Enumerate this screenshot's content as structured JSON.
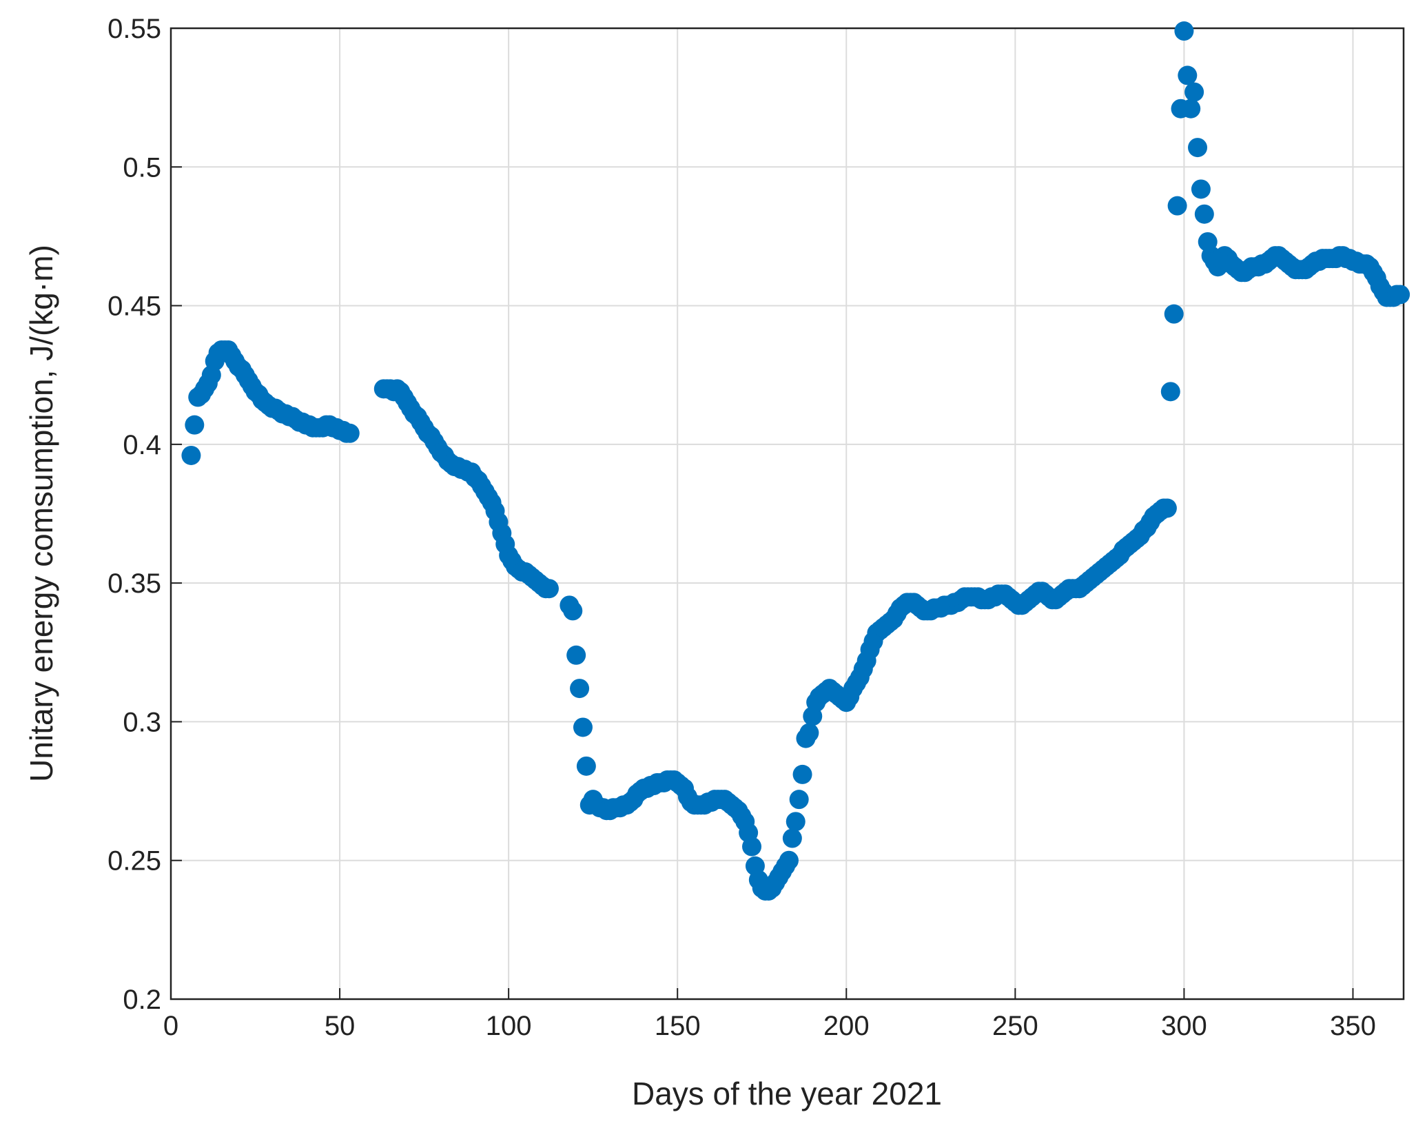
{
  "chart_data": {
    "type": "scatter",
    "xlabel": "Days of the year 2021",
    "ylabel": "Unitary energy comsumption, J/(kg·m)",
    "color": "#0072bd",
    "grid": true,
    "xlim": [
      0,
      365
    ],
    "ylim": [
      0.2,
      0.55
    ],
    "xticks": [
      0,
      50,
      100,
      150,
      200,
      250,
      300,
      350
    ],
    "yticks": [
      {
        "value": 0.2,
        "label": "0.2"
      },
      0.25,
      {
        "value": 0.3,
        "label": "0.3"
      },
      0.35,
      {
        "value": 0.4,
        "label": "0.4"
      },
      0.45,
      {
        "value": 0.5,
        "label": "0.5"
      },
      0.55
    ],
    "x": [
      6,
      7,
      8,
      9,
      10,
      11,
      12,
      13,
      14,
      15,
      16,
      17,
      18,
      19,
      20,
      21,
      22,
      23,
      24,
      25,
      26,
      27,
      28,
      29,
      30,
      31,
      32,
      33,
      34,
      35,
      36,
      37,
      38,
      39,
      40,
      41,
      42,
      43,
      44,
      45,
      46,
      47,
      48,
      49,
      50,
      51,
      52,
      53,
      63,
      64,
      65,
      66,
      67,
      68,
      69,
      70,
      71,
      72,
      73,
      74,
      75,
      76,
      77,
      78,
      79,
      80,
      81,
      82,
      83,
      84,
      85,
      86,
      87,
      88,
      89,
      90,
      91,
      92,
      93,
      94,
      95,
      96,
      97,
      98,
      99,
      100,
      101,
      102,
      103,
      104,
      105,
      106,
      107,
      108,
      109,
      110,
      111,
      112,
      118,
      119,
      120,
      121,
      122,
      123,
      124,
      125,
      126,
      127,
      128,
      129,
      130,
      131,
      132,
      133,
      134,
      135,
      136,
      137,
      138,
      139,
      140,
      141,
      142,
      143,
      144,
      145,
      146,
      147,
      148,
      149,
      150,
      151,
      152,
      153,
      154,
      155,
      156,
      157,
      158,
      159,
      160,
      161,
      162,
      163,
      164,
      165,
      166,
      167,
      168,
      169,
      170,
      171,
      172,
      173,
      174,
      175,
      176,
      177,
      178,
      179,
      180,
      181,
      182,
      183,
      184,
      185,
      186,
      187,
      188,
      189,
      190,
      191,
      192,
      193,
      194,
      195,
      196,
      197,
      198,
      199,
      200,
      201,
      202,
      203,
      204,
      205,
      206,
      207,
      208,
      209,
      210,
      211,
      212,
      213,
      214,
      215,
      216,
      217,
      218,
      219,
      220,
      221,
      222,
      223,
      224,
      225,
      226,
      227,
      228,
      229,
      230,
      231,
      232,
      233,
      234,
      235,
      236,
      237,
      238,
      239,
      240,
      241,
      242,
      243,
      244,
      245,
      246,
      247,
      248,
      249,
      250,
      251,
      252,
      253,
      254,
      255,
      256,
      257,
      258,
      259,
      260,
      261,
      262,
      263,
      264,
      265,
      266,
      267,
      268,
      269,
      270,
      271,
      272,
      273,
      274,
      275,
      276,
      277,
      278,
      279,
      280,
      281,
      282,
      283,
      284,
      285,
      286,
      287,
      288,
      289,
      290,
      291,
      292,
      293,
      294,
      295,
      296,
      297,
      298,
      299,
      300,
      301,
      302,
      303,
      304,
      305,
      306,
      307,
      308,
      309,
      310,
      311,
      312,
      313,
      314,
      315,
      316,
      317,
      318,
      319,
      320,
      321,
      322,
      323,
      324,
      325,
      326,
      327,
      328,
      329,
      330,
      331,
      332,
      333,
      334,
      335,
      336,
      337,
      338,
      339,
      340,
      341,
      342,
      343,
      344,
      345,
      346,
      347,
      348,
      349,
      350,
      351,
      352,
      353,
      354,
      355,
      356,
      357,
      358,
      359,
      360,
      361,
      362,
      363,
      364
    ],
    "values": [
      0.396,
      0.407,
      0.417,
      0.418,
      0.42,
      0.422,
      0.425,
      0.43,
      0.433,
      0.434,
      0.434,
      0.434,
      0.432,
      0.43,
      0.428,
      0.427,
      0.425,
      0.423,
      0.421,
      0.419,
      0.418,
      0.416,
      0.415,
      0.414,
      0.413,
      0.413,
      0.412,
      0.411,
      0.411,
      0.41,
      0.41,
      0.409,
      0.408,
      0.408,
      0.407,
      0.407,
      0.406,
      0.406,
      0.406,
      0.406,
      0.407,
      0.407,
      0.406,
      0.406,
      0.405,
      0.405,
      0.404,
      0.404,
      0.42,
      0.42,
      0.42,
      0.419,
      0.42,
      0.419,
      0.417,
      0.415,
      0.413,
      0.411,
      0.41,
      0.408,
      0.406,
      0.404,
      0.403,
      0.401,
      0.399,
      0.397,
      0.396,
      0.394,
      0.393,
      0.392,
      0.392,
      0.391,
      0.391,
      0.39,
      0.39,
      0.388,
      0.387,
      0.385,
      0.383,
      0.381,
      0.379,
      0.376,
      0.372,
      0.368,
      0.364,
      0.36,
      0.358,
      0.356,
      0.355,
      0.354,
      0.354,
      0.353,
      0.352,
      0.351,
      0.35,
      0.349,
      0.348,
      0.348,
      0.342,
      0.34,
      0.324,
      0.312,
      0.298,
      0.284,
      0.27,
      0.272,
      0.27,
      0.269,
      0.269,
      0.268,
      0.268,
      0.269,
      0.269,
      0.269,
      0.27,
      0.27,
      0.271,
      0.272,
      0.274,
      0.275,
      0.276,
      0.276,
      0.277,
      0.277,
      0.278,
      0.278,
      0.278,
      0.279,
      0.279,
      0.279,
      0.278,
      0.277,
      0.276,
      0.273,
      0.271,
      0.27,
      0.27,
      0.27,
      0.27,
      0.271,
      0.271,
      0.272,
      0.272,
      0.272,
      0.272,
      0.271,
      0.27,
      0.269,
      0.268,
      0.266,
      0.264,
      0.26,
      0.255,
      0.248,
      0.243,
      0.24,
      0.239,
      0.239,
      0.24,
      0.242,
      0.244,
      0.246,
      0.248,
      0.25,
      0.258,
      0.264,
      0.272,
      0.281,
      0.294,
      0.296,
      0.302,
      0.307,
      0.309,
      0.31,
      0.311,
      0.312,
      0.311,
      0.31,
      0.309,
      0.308,
      0.307,
      0.309,
      0.312,
      0.314,
      0.316,
      0.319,
      0.322,
      0.326,
      0.329,
      0.332,
      0.333,
      0.334,
      0.335,
      0.336,
      0.337,
      0.339,
      0.341,
      0.342,
      0.343,
      0.343,
      0.343,
      0.342,
      0.341,
      0.34,
      0.34,
      0.34,
      0.341,
      0.341,
      0.341,
      0.342,
      0.342,
      0.342,
      0.343,
      0.343,
      0.344,
      0.345,
      0.345,
      0.345,
      0.345,
      0.345,
      0.344,
      0.344,
      0.344,
      0.345,
      0.345,
      0.346,
      0.346,
      0.346,
      0.345,
      0.344,
      0.343,
      0.342,
      0.342,
      0.343,
      0.344,
      0.345,
      0.346,
      0.347,
      0.347,
      0.346,
      0.345,
      0.344,
      0.344,
      0.345,
      0.346,
      0.347,
      0.348,
      0.348,
      0.348,
      0.348,
      0.349,
      0.35,
      0.351,
      0.352,
      0.353,
      0.354,
      0.355,
      0.356,
      0.357,
      0.358,
      0.359,
      0.36,
      0.362,
      0.363,
      0.364,
      0.365,
      0.366,
      0.367,
      0.369,
      0.37,
      0.372,
      0.374,
      0.375,
      0.376,
      0.377,
      0.377,
      0.419,
      0.447,
      0.486,
      0.521,
      0.549,
      0.533,
      0.521,
      0.527,
      0.507,
      0.492,
      0.483,
      0.473,
      0.468,
      0.466,
      0.464,
      0.467,
      0.468,
      0.467,
      0.465,
      0.464,
      0.463,
      0.462,
      0.462,
      0.463,
      0.464,
      0.464,
      0.464,
      0.465,
      0.465,
      0.466,
      0.467,
      0.468,
      0.468,
      0.467,
      0.466,
      0.465,
      0.464,
      0.463,
      0.463,
      0.463,
      0.463,
      0.464,
      0.465,
      0.466,
      0.466,
      0.467,
      0.467,
      0.467,
      0.467,
      0.467,
      0.468,
      0.468,
      0.467,
      0.467,
      0.466,
      0.466,
      0.465,
      0.465,
      0.465,
      0.464,
      0.462,
      0.46,
      0.457,
      0.455,
      0.453,
      0.453,
      0.453,
      0.454,
      0.454
    ]
  }
}
